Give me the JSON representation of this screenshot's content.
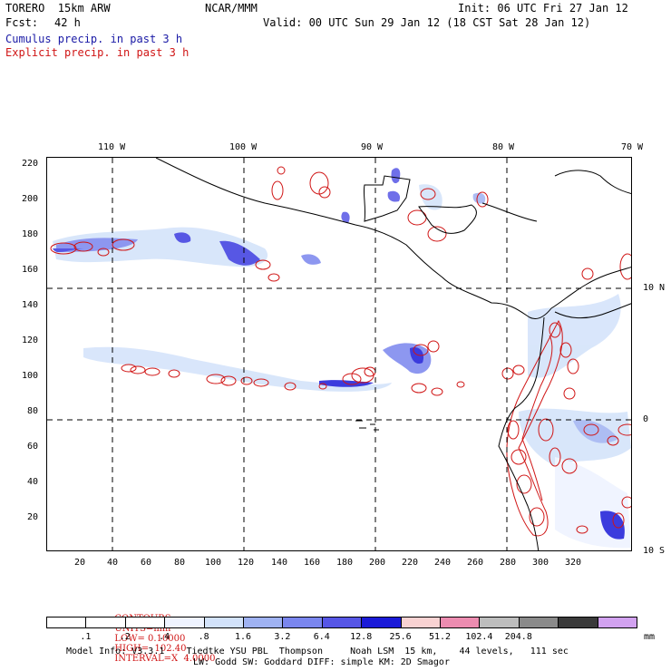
{
  "header": {
    "model": "TORERO  15km ARW",
    "org": "NCAR/MMM",
    "init": "Init: 06 UTC Fri 27 Jan 12",
    "fcst_label": "Fcst:",
    "fcst_value": "42 h",
    "valid": "Valid: 00 UTC Sun 29 Jan 12 (18 CST Sat 28 Jan 12)",
    "cumulus": "Cumulus precip. in past 3 h",
    "explicit": "Explicit precip. in past 3 h"
  },
  "map": {
    "lon_labels": [
      "110 W",
      "100 W",
      "90 W",
      "80 W",
      "70 W"
    ],
    "lat_labels": [
      "10 N",
      "0",
      "10 S"
    ],
    "x_ticks": [
      "20",
      "40",
      "60",
      "80",
      "100",
      "120",
      "140",
      "160",
      "180",
      "200",
      "220",
      "240",
      "260",
      "280",
      "300",
      "320"
    ],
    "y_ticks": [
      "220",
      "200",
      "180",
      "160",
      "140",
      "120",
      "100",
      "80",
      "60",
      "40",
      "20"
    ]
  },
  "contours": {
    "label": "CONTOURS:",
    "units": "UNITS=mm",
    "low": "LOW= 0.10000",
    "high": "HIGH=  102.40",
    "interval": "INTERVAL=X  4.0000"
  },
  "colorbar": {
    "colors": [
      "#ffffff",
      "#ffffff",
      "#ffffff",
      "#eef3ff",
      "#d2e2fa",
      "#9fb2f2",
      "#7a86ee",
      "#5656e6",
      "#1a1ad8",
      "#f8d2d2",
      "#ec8cb0",
      "#bdbdbd",
      "#8a8a8a",
      "#3a3a3a",
      "#d2a2f0"
    ],
    "labels": [
      ".1",
      ".2",
      ".4",
      ".8",
      "1.6",
      "3.2",
      "6.4",
      "12.8",
      "25.6",
      "51.2",
      "102.4",
      "204.8"
    ],
    "unit": "mm"
  },
  "footer": {
    "line1": "Model Info: V3.3.1    Tiedtke YSU PBL  Thompson     Noah LSM  15 km,    44 levels,   111 sec",
    "line2": "LW: Godd SW: Goddard DIFF: simple KM: 2D Smagor"
  }
}
